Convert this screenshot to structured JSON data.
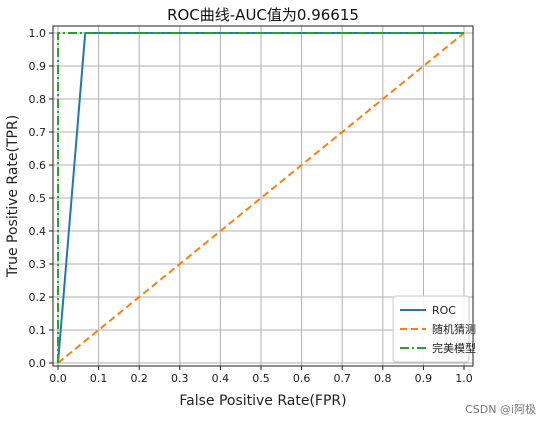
{
  "chart_data": {
    "type": "line",
    "title": "ROC曲线-AUC值为0.96615",
    "xlabel": "False Positive Rate(FPR)",
    "ylabel": "True Positive Rate(TPR)",
    "xlim": [
      0.0,
      1.0
    ],
    "ylim": [
      0.0,
      1.0
    ],
    "xticks": [
      "0.0",
      "0.1",
      "0.2",
      "0.3",
      "0.4",
      "0.5",
      "0.6",
      "0.7",
      "0.8",
      "0.9",
      "1.0"
    ],
    "yticks": [
      "0.0",
      "0.1",
      "0.2",
      "0.3",
      "0.4",
      "0.5",
      "0.6",
      "0.7",
      "0.8",
      "0.9",
      "1.0"
    ],
    "grid": true,
    "legend_position": "bottom-right",
    "series": [
      {
        "name": "ROC",
        "color": "#1f77b4",
        "style": "solid",
        "x": [
          0.0,
          0.067,
          1.0
        ],
        "y": [
          0.0,
          1.0,
          1.0
        ]
      },
      {
        "name": "随机猜测",
        "color": "#ff7f0e",
        "style": "dashed",
        "x": [
          0.0,
          1.0
        ],
        "y": [
          0.0,
          1.0
        ]
      },
      {
        "name": "完美模型",
        "color": "#2ca02c",
        "style": "dashdot",
        "x": [
          0.0,
          0.0,
          1.0
        ],
        "y": [
          0.0,
          1.0,
          1.0
        ]
      }
    ]
  },
  "watermark": "CSDN @i阿极"
}
